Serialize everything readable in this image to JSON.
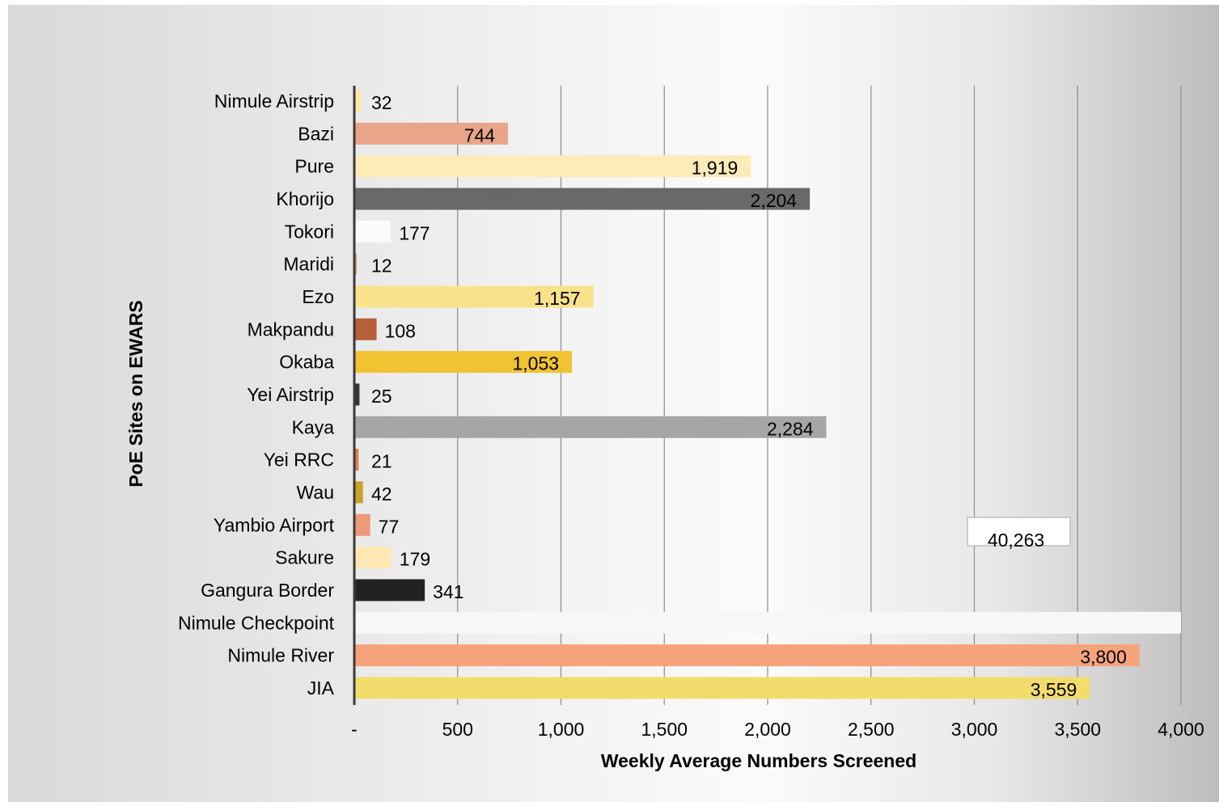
{
  "chart_data": {
    "type": "bar",
    "orientation": "horizontal",
    "xlabel": "Weekly Average Numbers Screened",
    "ylabel": "PoE Sites on EWARS",
    "xlim": [
      0,
      4000
    ],
    "xticks": [
      0,
      500,
      1000,
      1500,
      2000,
      2500,
      3000,
      3500,
      4000
    ],
    "xtick_labels": [
      "-",
      "500",
      "1,000",
      "1,500",
      "2,000",
      "2,500",
      "3,000",
      "3,500",
      "4,000"
    ],
    "grid": "vertical",
    "categories": [
      "Nimule Airstrip",
      "Bazi",
      "Pure",
      "Khorijo",
      "Tokori",
      "Maridi",
      "Ezo",
      "Makpandu",
      "Okaba",
      "Yei Airstrip",
      "Kaya",
      "Yei RRC",
      "Wau",
      "Yambio Airport",
      "Sakure",
      "Gangura Border",
      "Nimule Checkpoint",
      "Nimule River",
      "JIA"
    ],
    "values": [
      32,
      744,
      1919,
      2204,
      177,
      12,
      1157,
      108,
      1053,
      25,
      2284,
      21,
      42,
      77,
      179,
      341,
      40263,
      3800,
      3559
    ],
    "value_labels": [
      "32",
      "744",
      "1,919",
      "2,204",
      "177",
      "12",
      "1,157",
      "108",
      "1,053",
      "25",
      "2,284",
      "21",
      "42",
      "77",
      "179",
      "341",
      "40,263",
      "3,800",
      "3,559"
    ],
    "colors": [
      "#fde9a6",
      "#e9a489",
      "#fdebb8",
      "#696969",
      "#fbfbfb",
      "#e39e86",
      "#fae28d",
      "#b65f3a",
      "#f1c232",
      "#333333",
      "#a6a6a6",
      "#e07a55",
      "#c9a227",
      "#ee9a78",
      "#fde8b4",
      "#222222",
      "#f7f7f7",
      "#f6a27a",
      "#f2dd6c"
    ],
    "callout_label": "40,263"
  }
}
